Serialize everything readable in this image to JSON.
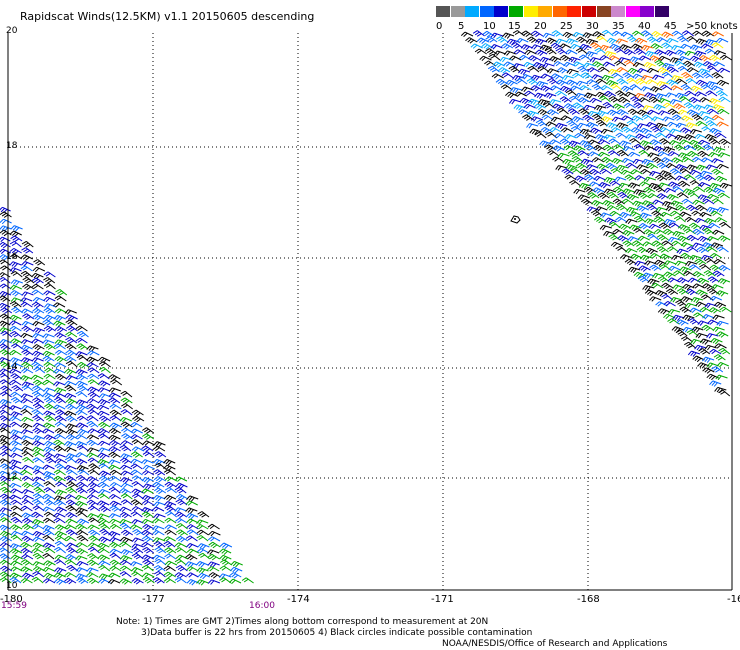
{
  "title": "Rapidscat Winds(12.5KM) v1.1 20150605 descending",
  "colorbar": {
    "colors": [
      "#555555",
      "#999999",
      "#00aaff",
      "#0066ff",
      "#0000cc",
      "#00aa00",
      "#ffee00",
      "#ffaa00",
      "#ff6600",
      "#ff2200",
      "#cc0000",
      "#884422",
      "#cc88cc",
      "#ff00ff",
      "#8800cc",
      "#330066"
    ],
    "labels": [
      "0",
      "5",
      "10",
      "15",
      "20",
      "25",
      "30",
      "35",
      "40",
      "45",
      ">50 knots"
    ]
  },
  "y_axis": {
    "labels": [
      "20",
      "18",
      "16",
      "14",
      "12",
      "10"
    ]
  },
  "x_axis": {
    "labels": [
      "-180",
      "-177",
      "-174",
      "-171",
      "-168",
      "-16"
    ]
  },
  "times": {
    "left": "15:59",
    "right": "16:00"
  },
  "notes": {
    "line1": "Note: 1) Times are GMT 2)Times along bottom correspond to measurement at 20N",
    "line2": "3)Data buffer is 22 hrs from 20150605 4) Black circles indicate possible contamination",
    "line3": "NOAA/NESDIS/Office of Research and Applications"
  },
  "map_data": {
    "type": "wind-barb swath map",
    "lon_range": [
      -180,
      -165
    ],
    "lat_range": [
      10,
      20
    ],
    "swaths": [
      {
        "name": "west",
        "dominant_speed_knots": "10-20",
        "colors": [
          "#0000cc",
          "#0066ff",
          "#00aa00",
          "#000000"
        ]
      },
      {
        "name": "east",
        "dominant_speed_knots": "10-30",
        "colors": [
          "#0000cc",
          "#00aaff",
          "#00aa00",
          "#ffee00",
          "#ff6600",
          "#000000"
        ]
      }
    ],
    "island_marker_label": ""
  }
}
